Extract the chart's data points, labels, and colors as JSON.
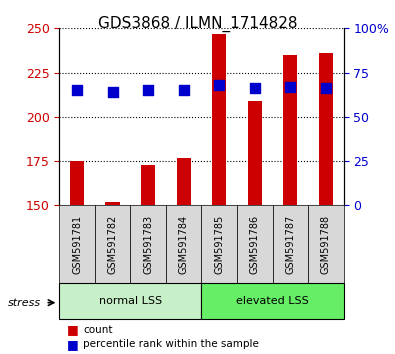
{
  "title": "GDS3868 / ILMN_1714828",
  "samples": [
    "GSM591781",
    "GSM591782",
    "GSM591783",
    "GSM591784",
    "GSM591785",
    "GSM591786",
    "GSM591787",
    "GSM591788"
  ],
  "counts": [
    175,
    152,
    173,
    177,
    247,
    209,
    235,
    236
  ],
  "percentile_rank_values": [
    65,
    64,
    65,
    65,
    68,
    66,
    67,
    66
  ],
  "ymin": 150,
  "ymax": 250,
  "yticks": [
    150,
    175,
    200,
    225,
    250
  ],
  "right_yticks": [
    0,
    25,
    50,
    75,
    100
  ],
  "right_yticklabels": [
    "0",
    "25",
    "50",
    "75",
    "100%"
  ],
  "groups": [
    {
      "label": "normal LSS",
      "start": 0,
      "end": 4,
      "color": "#c8f0c8"
    },
    {
      "label": "elevated LSS",
      "start": 4,
      "end": 8,
      "color": "#66ee66"
    }
  ],
  "bar_color": "#cc0000",
  "dot_color": "#0000cc",
  "bar_width": 0.4,
  "dot_size": 50,
  "stress_label": "stress",
  "background_color": "#ffffff",
  "tick_label_color_left": "#cc0000",
  "tick_label_color_right": "#0000cc",
  "legend_count_color": "#cc0000",
  "legend_pct_color": "#0000cc"
}
